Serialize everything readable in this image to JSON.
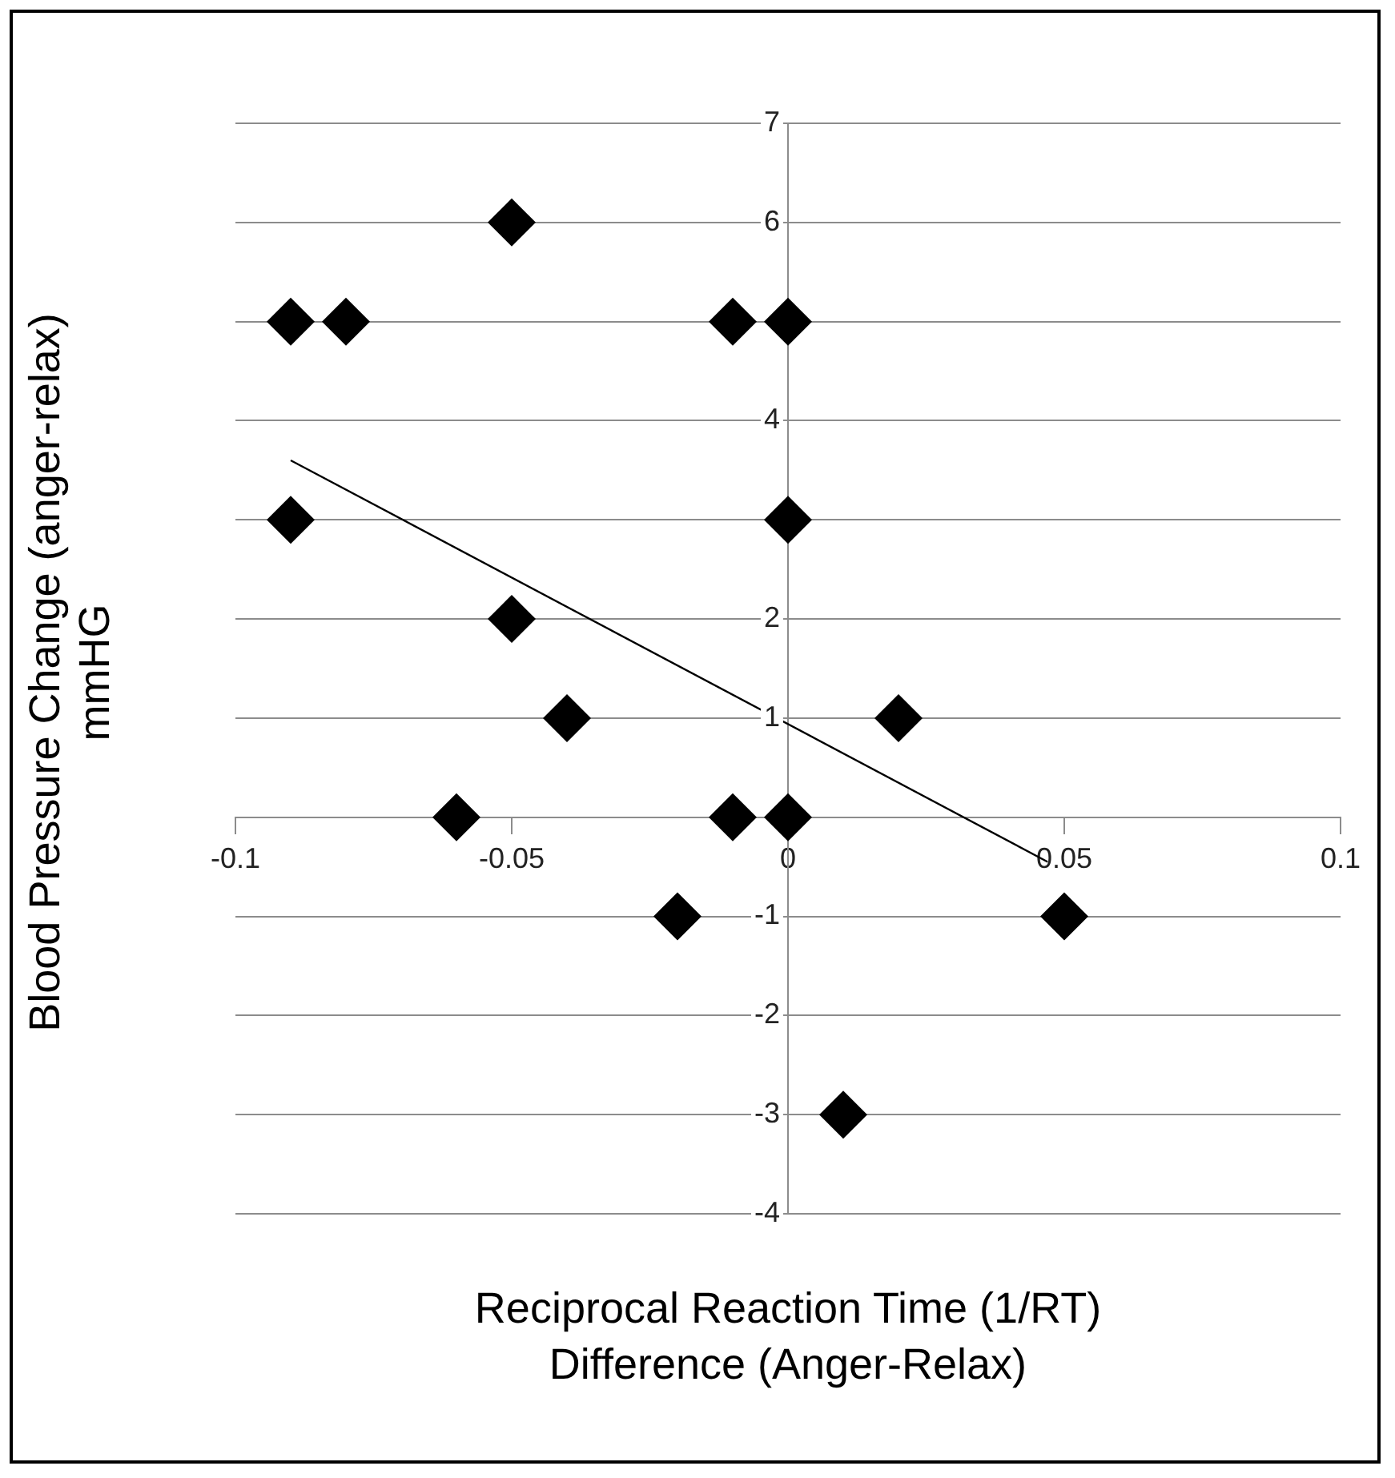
{
  "chart_data": {
    "type": "scatter",
    "xlabel": "Reciprocal Reaction Time (1/RT)\nDifference (Anger-Relax)",
    "ylabel": "Blood Pressure Change (anger-relax)\nmmHG",
    "xlim": [
      -0.1,
      0.1
    ],
    "xticks": [
      -0.1,
      -0.05,
      0,
      0.05,
      0.1
    ],
    "ylim": [
      -4,
      7
    ],
    "yticks": [
      -4,
      -3,
      -2,
      -1,
      {
        "value": 0,
        "label": null
      },
      1,
      2,
      {
        "value": 3,
        "label": null
      },
      4,
      {
        "value": 5,
        "label": null
      },
      6,
      7
    ],
    "grid": "y",
    "legend": false,
    "marker": "diamond",
    "series": [
      {
        "type": "scatter",
        "color": "#000000",
        "x": [
          -0.05,
          -0.09,
          -0.08,
          -0.01,
          0,
          -0.09,
          0,
          -0.05,
          -0.04,
          0.02,
          -0.06,
          -0.01,
          0,
          -0.02,
          0.05,
          0.01
        ],
        "values": [
          6,
          5,
          5,
          5,
          5,
          3,
          3,
          2,
          1,
          1,
          0,
          0,
          0,
          -1,
          -1,
          -3
        ]
      },
      {
        "type": "line",
        "color": "#000000",
        "marker": "none",
        "x": [
          -0.09,
          0.047
        ],
        "values": [
          3.6,
          -0.45
        ]
      }
    ]
  }
}
